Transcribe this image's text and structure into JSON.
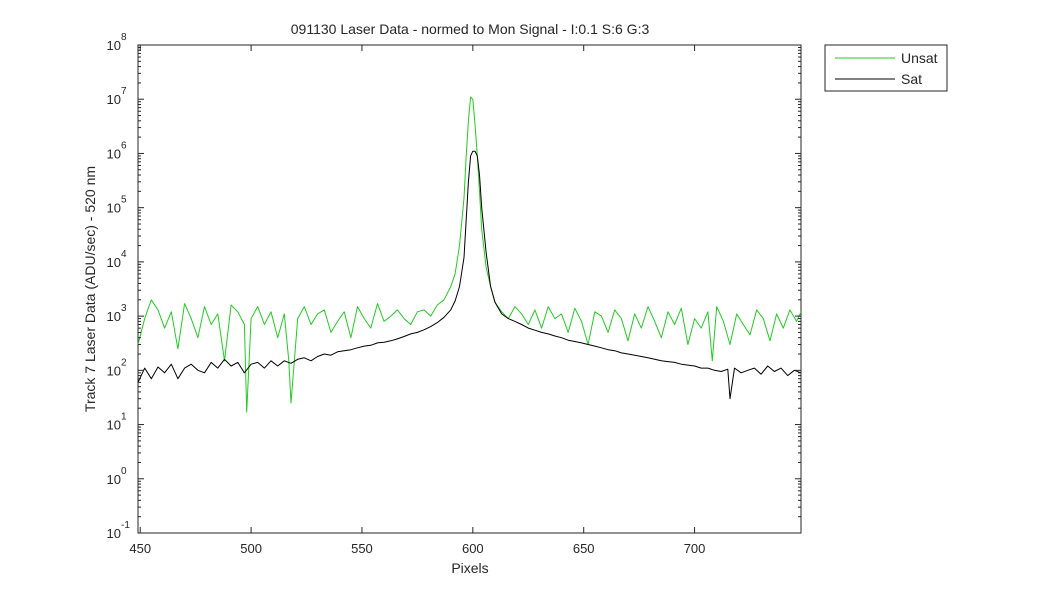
{
  "chart_data": {
    "type": "line",
    "title": "091130 Laser Data - normed to Mon Signal -   I:0.1  S:6  G:3",
    "xlabel": "Pixels",
    "ylabel": "Track 7 Laser Data (ADU/sec) - 520 nm",
    "xlim": [
      449,
      748
    ],
    "ylim": [
      0.1,
      100000000
    ],
    "yscale": "log",
    "x_ticks": [
      450,
      500,
      550,
      600,
      650,
      700
    ],
    "y_ticks": [
      {
        "value": 0.1,
        "base": "10",
        "exp": "-1"
      },
      {
        "value": 1,
        "base": "10",
        "exp": "0"
      },
      {
        "value": 10,
        "base": "10",
        "exp": "1"
      },
      {
        "value": 100,
        "base": "10",
        "exp": "2"
      },
      {
        "value": 1000,
        "base": "10",
        "exp": "3"
      },
      {
        "value": 10000,
        "base": "10",
        "exp": "4"
      },
      {
        "value": 100000,
        "base": "10",
        "exp": "5"
      },
      {
        "value": 1000000,
        "base": "10",
        "exp": "6"
      },
      {
        "value": 10000000,
        "base": "10",
        "exp": "7"
      },
      {
        "value": 100000000,
        "base": "10",
        "exp": "8"
      }
    ],
    "grid": false,
    "legend_position": "outside-top-right",
    "series": [
      {
        "name": "Unsat",
        "color": "#22cc22",
        "x": [
          449,
          452,
          455,
          458,
          461,
          464,
          467,
          470,
          473,
          476,
          479,
          482,
          485,
          488,
          491,
          494,
          497,
          498,
          500,
          503,
          506,
          509,
          512,
          515,
          517,
          518,
          521,
          524,
          527,
          530,
          533,
          536,
          539,
          542,
          545,
          548,
          551,
          554,
          557,
          560,
          563,
          566,
          569,
          572,
          575,
          578,
          581,
          584,
          587,
          590,
          592,
          594,
          596,
          597,
          598,
          599,
          600,
          601,
          602,
          603,
          604,
          606,
          608,
          610,
          613,
          616,
          619,
          622,
          625,
          628,
          631,
          634,
          637,
          640,
          643,
          646,
          649,
          652,
          655,
          658,
          661,
          664,
          667,
          670,
          673,
          676,
          679,
          682,
          685,
          688,
          691,
          694,
          697,
          700,
          703,
          706,
          708,
          710,
          713,
          716,
          719,
          722,
          725,
          728,
          731,
          734,
          737,
          740,
          743,
          746,
          748
        ],
        "y": [
          300,
          900,
          2000,
          1300,
          600,
          1200,
          250,
          1700,
          900,
          400,
          1500,
          700,
          1100,
          150,
          1600,
          1200,
          700,
          17,
          900,
          1500,
          700,
          1200,
          400,
          1100,
          150,
          25,
          900,
          1500,
          700,
          1100,
          1300,
          500,
          800,
          1200,
          400,
          1500,
          900,
          600,
          1700,
          800,
          1000,
          1300,
          900,
          700,
          1200,
          1300,
          1000,
          1600,
          2000,
          3500,
          6000,
          20000,
          150000,
          900000,
          4000000,
          11000000,
          10000000,
          3500000,
          900000,
          200000,
          40000,
          8000,
          3500,
          1800,
          1200,
          900,
          1500,
          1100,
          700,
          1300,
          600,
          1500,
          900,
          1100,
          500,
          1400,
          800,
          300,
          1200,
          1000,
          500,
          1300,
          900,
          350,
          1100,
          600,
          1500,
          800,
          400,
          1200,
          700,
          1400,
          300,
          900,
          600,
          1200,
          150,
          1500,
          800,
          300,
          1100,
          700,
          450,
          1300,
          900,
          350,
          1100,
          600,
          1300,
          800,
          1200
        ]
      },
      {
        "name": "Sat",
        "color": "#000000",
        "x": [
          449,
          452,
          455,
          458,
          461,
          464,
          467,
          470,
          473,
          476,
          479,
          482,
          485,
          488,
          491,
          494,
          497,
          500,
          503,
          506,
          509,
          512,
          515,
          518,
          521,
          524,
          527,
          530,
          533,
          536,
          539,
          542,
          545,
          548,
          551,
          554,
          557,
          560,
          563,
          566,
          569,
          572,
          575,
          578,
          581,
          584,
          587,
          590,
          592,
          594,
          596,
          597,
          598,
          599,
          600,
          601,
          602,
          603,
          604,
          606,
          608,
          610,
          613,
          616,
          619,
          622,
          625,
          628,
          631,
          634,
          637,
          640,
          643,
          646,
          649,
          652,
          655,
          658,
          661,
          664,
          667,
          670,
          673,
          676,
          679,
          682,
          685,
          688,
          691,
          694,
          697,
          700,
          703,
          706,
          709,
          712,
          715,
          716,
          718,
          721,
          724,
          727,
          730,
          733,
          736,
          739,
          742,
          745,
          748
        ],
        "y": [
          60,
          110,
          70,
          115,
          90,
          130,
          70,
          110,
          130,
          100,
          90,
          140,
          110,
          160,
          120,
          140,
          90,
          130,
          140,
          110,
          150,
          120,
          150,
          135,
          160,
          170,
          150,
          180,
          200,
          190,
          220,
          230,
          240,
          260,
          280,
          290,
          320,
          330,
          350,
          380,
          420,
          470,
          500,
          560,
          640,
          760,
          950,
          1300,
          1900,
          3500,
          12000,
          60000,
          300000,
          900000,
          1100000,
          1100000,
          900000,
          400000,
          100000,
          15000,
          3500,
          1800,
          1100,
          900,
          800,
          700,
          600,
          550,
          500,
          470,
          430,
          400,
          360,
          340,
          320,
          300,
          280,
          260,
          240,
          230,
          210,
          200,
          190,
          180,
          170,
          160,
          150,
          145,
          140,
          130,
          125,
          120,
          110,
          110,
          100,
          95,
          105,
          30,
          110,
          90,
          100,
          110,
          85,
          120,
          95,
          110,
          80,
          100,
          90
        ]
      }
    ]
  }
}
